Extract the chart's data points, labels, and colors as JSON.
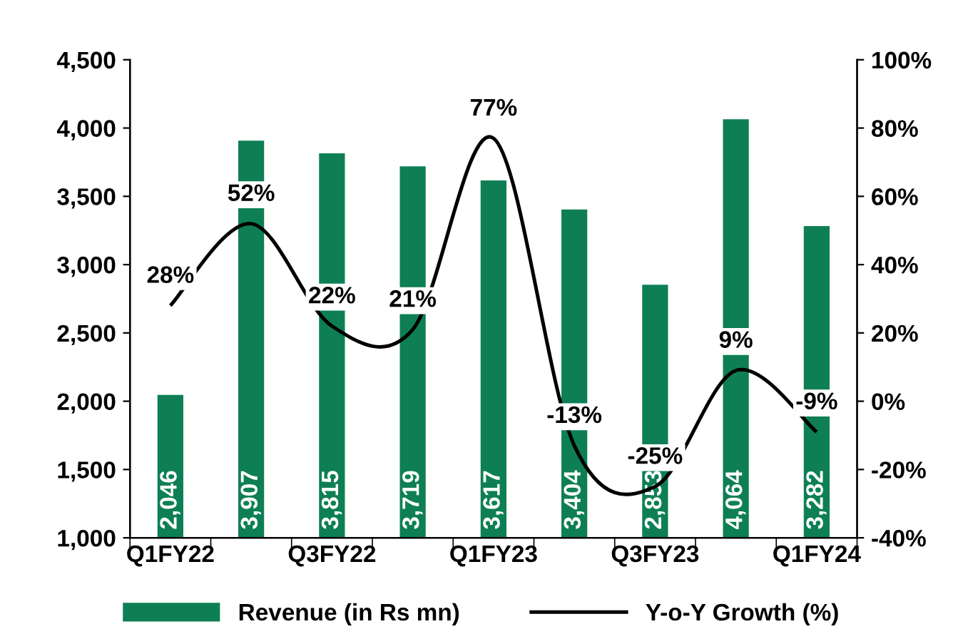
{
  "chart_data": {
    "type": "bar",
    "categories": [
      "Q1FY22",
      null,
      "Q3FY22",
      null,
      "Q1FY23",
      null,
      "Q3FY23",
      null,
      "Q1FY24"
    ],
    "series": [
      {
        "name": "Revenue (in Rs mn)",
        "color": "#0e7f55",
        "values": [
          2046,
          3907,
          3815,
          3719,
          3617,
          3404,
          2853,
          4064,
          3282
        ],
        "value_labels": [
          "2,046",
          "3,907",
          "3,815",
          "3,719",
          "3,617",
          "3,404",
          "2,853",
          "4,064",
          "3,282"
        ]
      },
      {
        "name": "Y-o-Y Growth (%)",
        "type": "line",
        "axis": "y2",
        "color": "#000000",
        "values": [
          28,
          52,
          22,
          21,
          77,
          -13,
          -25,
          9,
          -9
        ],
        "value_labels": [
          "28%",
          "52%",
          "22%",
          "21%",
          "77%",
          "-13%",
          "-25%",
          "9%",
          "-9%"
        ]
      }
    ],
    "ylim": [
      1000,
      4500
    ],
    "yticks": [
      {
        "value": 1000,
        "label": "1,000"
      },
      {
        "value": 1500,
        "label": "1,500"
      },
      {
        "value": 2000,
        "label": "2,000"
      },
      {
        "value": 2500,
        "label": "2,500"
      },
      {
        "value": 3000,
        "label": "3,000"
      },
      {
        "value": 3500,
        "label": "3,500"
      },
      {
        "value": 4000,
        "label": "4,000"
      },
      {
        "value": 4500,
        "label": "4,500"
      }
    ],
    "y2lim": [
      -40,
      100
    ],
    "y2ticks": [
      {
        "value": -40,
        "label": "-40%"
      },
      {
        "value": -20,
        "label": "-20%"
      },
      {
        "value": 0,
        "label": "0%"
      },
      {
        "value": 20,
        "label": "20%"
      },
      {
        "value": 40,
        "label": "40%"
      },
      {
        "value": 60,
        "label": "60%"
      },
      {
        "value": 80,
        "label": "80%"
      },
      {
        "value": 100,
        "label": "100%"
      }
    ],
    "grid": false,
    "legend": "bottom"
  }
}
